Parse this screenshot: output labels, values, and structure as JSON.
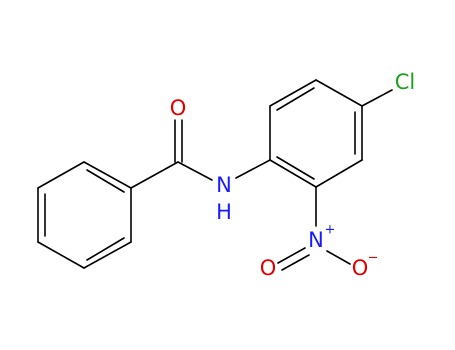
{
  "atoms": [
    {
      "label": "O"
    },
    {
      "label": "N"
    },
    {
      "label": "H"
    },
    {
      "label": "Cl"
    },
    {
      "label": "N",
      "charge": "+"
    },
    {
      "label": "O"
    },
    {
      "label": "O",
      "charge": "−"
    }
  ]
}
